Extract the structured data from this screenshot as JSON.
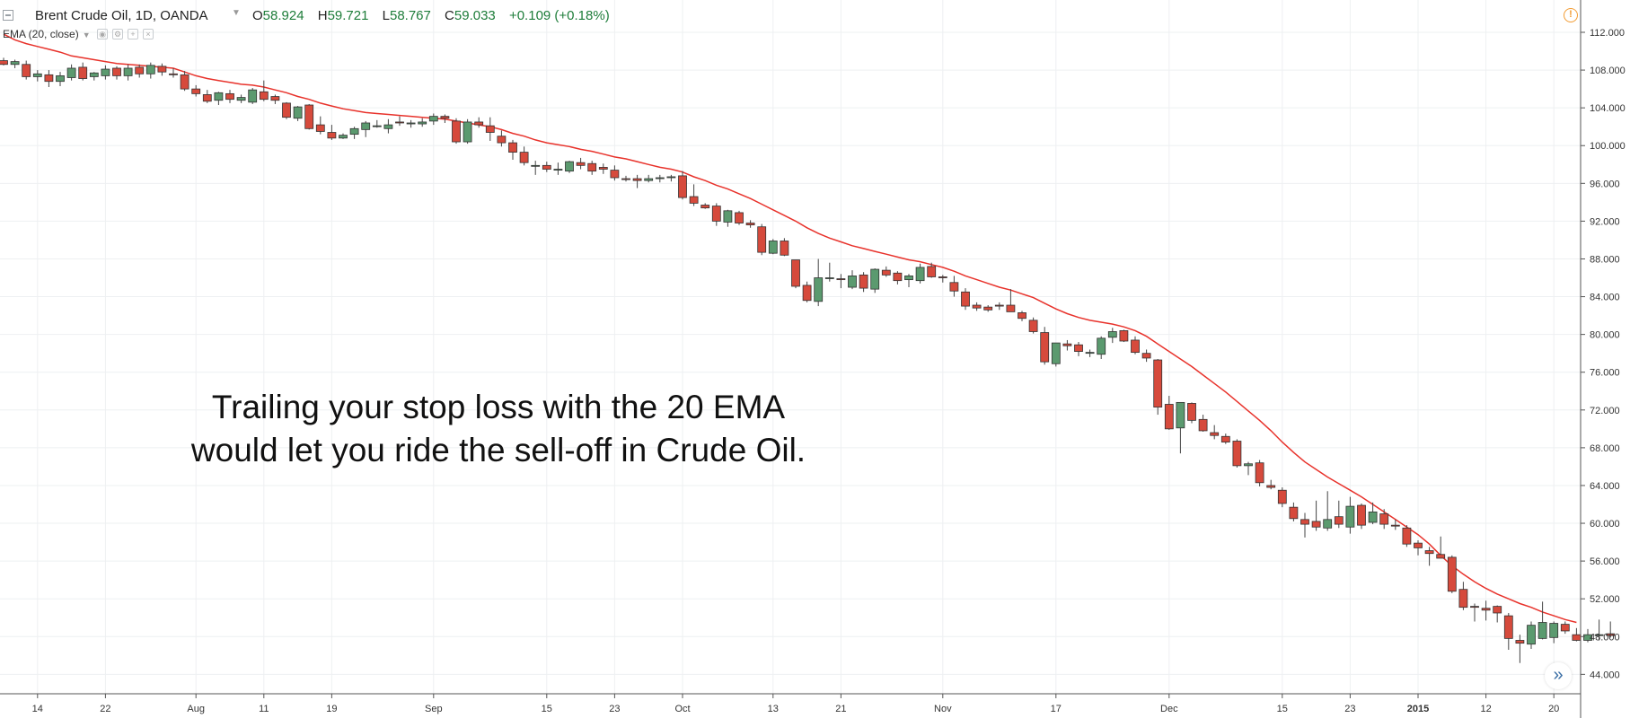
{
  "header": {
    "symbol_title": "Brent Crude Oil, 1D, OANDA",
    "ohlc": {
      "o_label": "O",
      "o": "58.924",
      "h_label": "H",
      "h": "59.721",
      "l_label": "L",
      "l": "58.767",
      "c_label": "C",
      "c": "59.033",
      "change": "+0.109 (+0.18%)"
    },
    "indicator": "EMA (20, close)"
  },
  "annotation": {
    "text": "Trailing your stop loss with the 20 EMA\nwould let you ride the sell-off in Crude Oil."
  },
  "colors": {
    "up": "#5b9a6f",
    "down": "#d64a3c",
    "ema": "#e8322b",
    "grid": "#eef0f2",
    "axis": "#555555"
  },
  "icons": {
    "collapse": "minus-square-icon",
    "alert": "exclamation-circle-icon",
    "scroll": "double-chevron-right-icon"
  },
  "chart_data": {
    "type": "candlestick",
    "title": "Brent Crude Oil, 1D, OANDA",
    "ylim": [
      42,
      113
    ],
    "y_ticks": [
      "112.000",
      "108.000",
      "104.000",
      "100.000",
      "96.000",
      "92.000",
      "88.000",
      "84.000",
      "80.000",
      "76.000",
      "72.000",
      "68.000",
      "64.000",
      "60.000",
      "56.000",
      "52.000",
      "48.000",
      "44.000"
    ],
    "x_ticks": [
      {
        "label": "14",
        "index": 3
      },
      {
        "label": "22",
        "index": 9
      },
      {
        "label": "Aug",
        "index": 17
      },
      {
        "label": "11",
        "index": 23
      },
      {
        "label": "19",
        "index": 29
      },
      {
        "label": "Sep",
        "index": 38
      },
      {
        "label": "15",
        "index": 48
      },
      {
        "label": "23",
        "index": 54
      },
      {
        "label": "Oct",
        "index": 60
      },
      {
        "label": "13",
        "index": 68
      },
      {
        "label": "21",
        "index": 74
      },
      {
        "label": "Nov",
        "index": 83
      },
      {
        "label": "17",
        "index": 93
      },
      {
        "label": "Dec",
        "index": 103
      },
      {
        "label": "15",
        "index": 113
      },
      {
        "label": "23",
        "index": 119
      },
      {
        "label": "2015",
        "index": 125
      },
      {
        "label": "12",
        "index": 131
      },
      {
        "label": "20",
        "index": 137
      }
    ],
    "bars": [
      [
        109,
        109.3,
        108.5,
        108.6
      ],
      [
        108.6,
        109.1,
        108.2,
        108.9
      ],
      [
        108.6,
        109,
        107,
        107.3
      ],
      [
        107.3,
        108,
        106.8,
        107.6
      ],
      [
        107.5,
        108,
        106.2,
        106.8
      ],
      [
        106.8,
        107.8,
        106.3,
        107.4
      ],
      [
        107.2,
        108.6,
        106.9,
        108.2
      ],
      [
        108.3,
        108.8,
        106.9,
        107.1
      ],
      [
        107.3,
        107.8,
        106.9,
        107.7
      ],
      [
        107.4,
        108.5,
        107,
        108.1
      ],
      [
        108.2,
        108.4,
        107,
        107.4
      ],
      [
        107.4,
        108.6,
        106.9,
        108.2
      ],
      [
        108.3,
        108.6,
        107.2,
        107.6
      ],
      [
        107.6,
        108.8,
        107.1,
        108.5
      ],
      [
        108.4,
        108.7,
        107.4,
        107.8
      ],
      [
        107.6,
        108.2,
        107.2,
        107.5
      ],
      [
        107.5,
        107.9,
        105.8,
        106
      ],
      [
        106,
        106.4,
        105.2,
        105.5
      ],
      [
        105.4,
        105.9,
        104.5,
        104.7
      ],
      [
        104.8,
        105.7,
        104.3,
        105.6
      ],
      [
        105.5,
        105.9,
        104.5,
        104.9
      ],
      [
        104.8,
        105.4,
        104.5,
        105.1
      ],
      [
        104.6,
        106.1,
        104.4,
        105.9
      ],
      [
        105.7,
        106.9,
        104.7,
        104.9
      ],
      [
        105.2,
        105.4,
        104.4,
        104.8
      ],
      [
        104.5,
        104.6,
        102.8,
        103
      ],
      [
        102.9,
        104.2,
        102.6,
        104.1
      ],
      [
        104.3,
        104.4,
        101.7,
        101.8
      ],
      [
        102.2,
        103.1,
        101.2,
        101.5
      ],
      [
        101.4,
        102.2,
        100.6,
        100.8
      ],
      [
        100.8,
        101.3,
        100.7,
        101.1
      ],
      [
        101.2,
        102,
        100.7,
        101.8
      ],
      [
        101.7,
        102.6,
        100.9,
        102.4
      ],
      [
        102.1,
        102.7,
        101.9,
        102.1
      ],
      [
        101.8,
        102.8,
        101.3,
        102.2
      ],
      [
        102.5,
        103.1,
        102.1,
        102.4
      ],
      [
        102.3,
        102.7,
        101.9,
        102.4
      ],
      [
        102.3,
        102.9,
        102,
        102.5
      ],
      [
        102.6,
        103.4,
        102.2,
        103.1
      ],
      [
        103.1,
        103.3,
        102.4,
        102.9
      ],
      [
        102.6,
        102.9,
        100.2,
        100.4
      ],
      [
        100.4,
        102.8,
        100.2,
        102.5
      ],
      [
        102.5,
        103,
        101.9,
        102.2
      ],
      [
        102.1,
        103,
        100.5,
        101.4
      ],
      [
        101,
        101.6,
        99.9,
        100.3
      ],
      [
        100.3,
        100.6,
        98.5,
        99.3
      ],
      [
        99.3,
        99.9,
        97.9,
        98.2
      ],
      [
        97.9,
        98.4,
        96.9,
        97.9
      ],
      [
        97.9,
        98.3,
        97.2,
        97.5
      ],
      [
        97.4,
        98.2,
        96.9,
        97.5
      ],
      [
        97.3,
        98.4,
        97.1,
        98.3
      ],
      [
        98.2,
        98.7,
        97.5,
        97.9
      ],
      [
        98.1,
        98.4,
        96.9,
        97.3
      ],
      [
        97.7,
        98.1,
        97,
        97.5
      ],
      [
        97.4,
        97.9,
        96.3,
        96.6
      ],
      [
        96.5,
        96.8,
        96.2,
        96.4
      ],
      [
        96.5,
        96.9,
        95.5,
        96.3
      ],
      [
        96.3,
        96.9,
        96.1,
        96.5
      ],
      [
        96.5,
        96.9,
        96.1,
        96.6
      ],
      [
        96.6,
        96.9,
        96.2,
        96.7
      ],
      [
        96.8,
        97.3,
        94.3,
        94.5
      ],
      [
        94.6,
        95.9,
        93.6,
        93.9
      ],
      [
        93.7,
        93.9,
        93.3,
        93.4
      ],
      [
        93.6,
        93.9,
        91.5,
        92
      ],
      [
        91.9,
        93.2,
        91.4,
        93.1
      ],
      [
        92.9,
        93.1,
        91.6,
        91.8
      ],
      [
        91.8,
        92.1,
        91.3,
        91.6
      ],
      [
        91.4,
        91.7,
        88.4,
        88.7
      ],
      [
        88.6,
        90.1,
        88.5,
        89.9
      ],
      [
        89.9,
        90.2,
        88.3,
        88.4
      ],
      [
        87.9,
        87.9,
        84.9,
        85.1
      ],
      [
        85.2,
        85.6,
        83.4,
        83.6
      ],
      [
        83.5,
        88,
        83,
        86
      ],
      [
        86,
        87.6,
        85.6,
        86
      ],
      [
        85.9,
        86.4,
        84.9,
        85.8
      ],
      [
        85,
        86.8,
        84.8,
        86.2
      ],
      [
        86.3,
        86.6,
        84.5,
        84.9
      ],
      [
        84.8,
        87,
        84.4,
        86.9
      ],
      [
        86.8,
        87.2,
        86.1,
        86.3
      ],
      [
        86.5,
        86.7,
        85.3,
        85.7
      ],
      [
        85.8,
        86.4,
        85,
        86.2
      ],
      [
        85.7,
        87.5,
        85.4,
        87.1
      ],
      [
        87.2,
        87.6,
        86,
        86.1
      ],
      [
        86.1,
        86.3,
        85.5,
        86
      ],
      [
        85.5,
        86.2,
        84,
        84.6
      ],
      [
        84.5,
        84.9,
        82.6,
        83
      ],
      [
        83.1,
        83.4,
        82.5,
        82.8
      ],
      [
        82.9,
        83.1,
        82.4,
        82.6
      ],
      [
        83.1,
        83.4,
        82.6,
        83
      ],
      [
        83.1,
        84.8,
        82.5,
        82.4
      ],
      [
        82.3,
        82.5,
        81.4,
        81.7
      ],
      [
        81.5,
        81.8,
        80.1,
        80.3
      ],
      [
        80.2,
        80.8,
        76.8,
        77.1
      ],
      [
        76.9,
        79.1,
        76.6,
        79.1
      ],
      [
        79,
        79.4,
        78.3,
        78.8
      ],
      [
        78.9,
        79.2,
        77.7,
        78.2
      ],
      [
        78,
        78.4,
        77.6,
        78.1
      ],
      [
        77.9,
        79.8,
        77.4,
        79.6
      ],
      [
        79.7,
        80.7,
        79.1,
        80.3
      ],
      [
        80.4,
        80.5,
        79.2,
        79.3
      ],
      [
        79.4,
        79.8,
        77.9,
        78.1
      ],
      [
        78,
        78.4,
        77.1,
        77.5
      ],
      [
        77.3,
        77.4,
        71.5,
        72.3
      ],
      [
        72.6,
        73.5,
        69.9,
        70
      ],
      [
        70.1,
        72.8,
        67.4,
        72.8
      ],
      [
        72.7,
        72.8,
        70.6,
        70.9
      ],
      [
        71,
        71.5,
        69.7,
        69.8
      ],
      [
        69.6,
        70.4,
        68.9,
        69.3
      ],
      [
        69.2,
        69.5,
        68.4,
        68.6
      ],
      [
        68.7,
        68.9,
        65.9,
        66.1
      ],
      [
        66.1,
        66.5,
        65.1,
        66.3
      ],
      [
        66.4,
        66.7,
        63.9,
        64.3
      ],
      [
        64,
        64.6,
        63.6,
        63.8
      ],
      [
        63.5,
        63.8,
        61.7,
        62.1
      ],
      [
        61.7,
        62.2,
        60.2,
        60.5
      ],
      [
        60.4,
        61.1,
        58.5,
        59.9
      ],
      [
        60.2,
        62.4,
        59.2,
        59.6
      ],
      [
        59.5,
        63.4,
        59.2,
        60.4
      ],
      [
        60.7,
        62.4,
        59.5,
        59.9
      ],
      [
        59.6,
        62.8,
        58.9,
        61.8
      ],
      [
        61.9,
        62.1,
        59.4,
        59.8
      ],
      [
        60.1,
        62.2,
        59.9,
        61.2
      ],
      [
        61,
        61.5,
        59.4,
        59.9
      ],
      [
        59.8,
        60.4,
        59.3,
        59.7
      ],
      [
        59.5,
        59.8,
        57.5,
        57.8
      ],
      [
        57.9,
        58.2,
        56.6,
        57.4
      ],
      [
        57.1,
        57.5,
        55.5,
        56.8
      ],
      [
        56.7,
        58.6,
        56.4,
        56.3
      ],
      [
        56.4,
        56.6,
        52.6,
        52.8
      ],
      [
        53,
        53.8,
        50.8,
        51.1
      ],
      [
        51.2,
        51.5,
        49.6,
        51.1
      ],
      [
        51,
        51.8,
        49.7,
        50.8
      ],
      [
        51.2,
        51.3,
        49.5,
        50.5
      ],
      [
        50.2,
        50.5,
        46.6,
        47.8
      ],
      [
        47.6,
        48.2,
        45.2,
        47.3
      ],
      [
        47.2,
        49.6,
        46.7,
        49.2
      ],
      [
        47.8,
        51.7,
        47.7,
        49.5
      ],
      [
        47.9,
        49.6,
        47.3,
        49.4
      ],
      [
        49.3,
        49.6,
        48.3,
        48.6
      ],
      [
        48.2,
        48.9,
        47.5,
        47.6
      ],
      [
        47.6,
        48.8,
        47.4,
        48.2
      ],
      [
        48.1,
        49.8,
        47.6,
        48.2
      ],
      [
        48.3,
        49.6,
        47.9,
        48.1
      ]
    ],
    "ema_20": [
      111.8,
      111.2,
      110.8,
      110.5,
      110.2,
      109.9,
      109.5,
      109.3,
      109.1,
      108.9,
      108.7,
      108.6,
      108.5,
      108.4,
      108.3,
      108.2,
      107.8,
      107.4,
      107.1,
      106.9,
      106.7,
      106.5,
      106.4,
      106.2,
      105.9,
      105.6,
      105.2,
      104.9,
      104.5,
      104.2,
      103.9,
      103.7,
      103.5,
      103.4,
      103.3,
      103.2,
      103.1,
      103,
      102.9,
      102.8,
      102.6,
      102.4,
      102.2,
      102,
      101.7,
      101.3,
      101,
      100.6,
      100.3,
      100.1,
      99.9,
      99.6,
      99.4,
      99.1,
      98.8,
      98.6,
      98.3,
      98,
      97.7,
      97.5,
      97.2,
      96.7,
      96.3,
      95.8,
      95.4,
      94.9,
      94.4,
      93.8,
      93.2,
      92.6,
      92,
      91.3,
      90.7,
      90.2,
      89.8,
      89.4,
      89.1,
      88.8,
      88.5,
      88.2,
      87.9,
      87.7,
      87.4,
      87.1,
      86.7,
      86.2,
      85.8,
      85.4,
      85,
      84.7,
      84.3,
      83.9,
      83.3,
      82.7,
      82.2,
      81.8,
      81.5,
      81.3,
      81.1,
      80.8,
      80.4,
      79.8,
      79,
      78.2,
      77.4,
      76.6,
      75.7,
      74.8,
      73.9,
      72.9,
      71.9,
      70.9,
      69.8,
      68.6,
      67.5,
      66.5,
      65.7,
      64.9,
      64.2,
      63.5,
      62.8,
      62,
      61.2,
      60.4,
      59.6,
      58.8,
      57.8,
      56.6,
      55.5,
      54.6,
      53.8,
      53.1,
      52.5,
      52,
      51.5,
      51.1,
      50.6,
      50.2,
      49.8,
      49.5
    ]
  }
}
